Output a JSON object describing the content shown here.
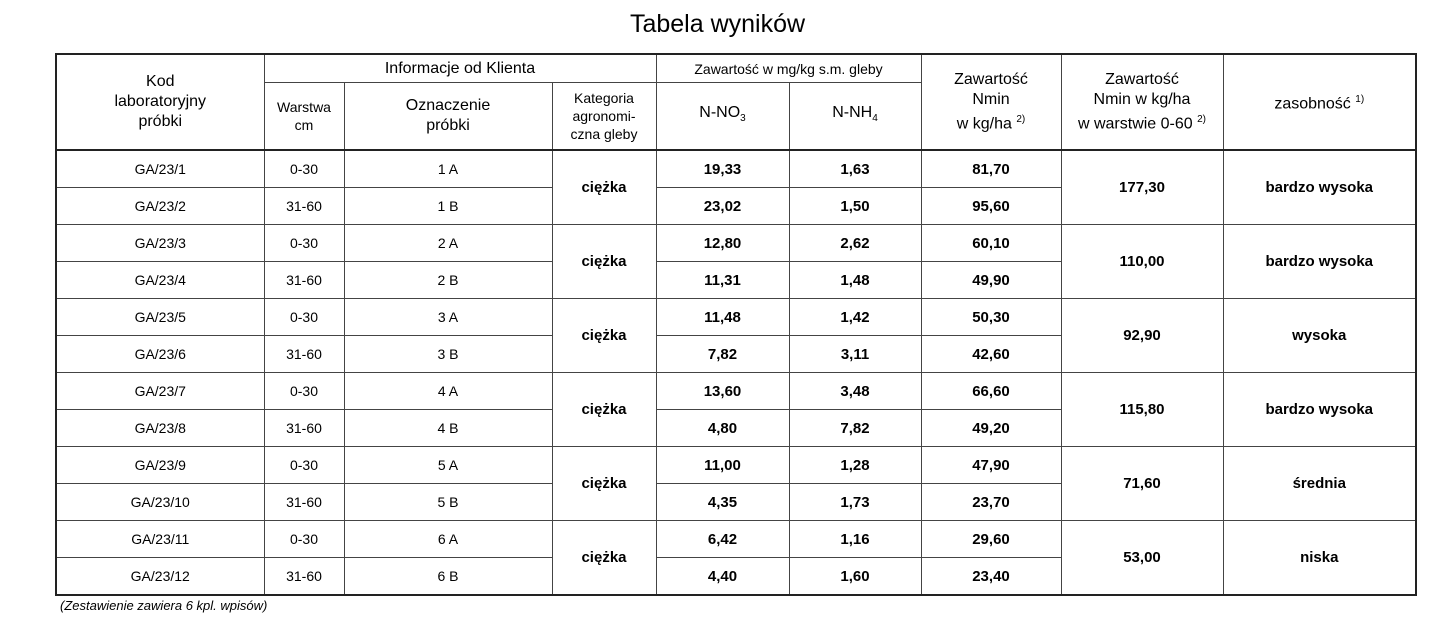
{
  "title": "Tabela wyników",
  "header": {
    "kod": [
      "Kod",
      "laboratoryjny",
      "próbki"
    ],
    "info": "Informacje od Klienta",
    "warstwa": [
      "Warstwa",
      "cm"
    ],
    "oznaczenie": [
      "Oznaczenie",
      "próbki"
    ],
    "kategoria": [
      "Kategoria",
      "agronomi-",
      "czna gleby"
    ],
    "zawartosc_mg": "Zawartość w mg/kg s.m. gleby",
    "no3": {
      "text": "N-NO",
      "sub": "3"
    },
    "nh4": {
      "text": "N-NH",
      "sub": "4"
    },
    "nmin": {
      "lines": [
        "Zawartość",
        "Nmin",
        "w kg/ha"
      ],
      "sup": "2)"
    },
    "nmin060": {
      "lines": [
        "Zawartość",
        "Nmin w kg/ha",
        "w warstwie 0-60"
      ],
      "sup": "2)"
    },
    "zasobnosc": {
      "text": "zasobność",
      "sup": "1)"
    }
  },
  "groups": [
    {
      "category": "ciężka",
      "total": "177,30",
      "level": "bardzo wysoka",
      "samples": [
        {
          "code": "GA/23/1",
          "depth": "0-30",
          "label": "1 A",
          "no3": "19,33",
          "nh4": "1,63",
          "nmin": "81,70"
        },
        {
          "code": "GA/23/2",
          "depth": "31-60",
          "label": "1 B",
          "no3": "23,02",
          "nh4": "1,50",
          "nmin": "95,60"
        }
      ]
    },
    {
      "category": "ciężka",
      "total": "110,00",
      "level": "bardzo wysoka",
      "samples": [
        {
          "code": "GA/23/3",
          "depth": "0-30",
          "label": "2 A",
          "no3": "12,80",
          "nh4": "2,62",
          "nmin": "60,10"
        },
        {
          "code": "GA/23/4",
          "depth": "31-60",
          "label": "2 B",
          "no3": "11,31",
          "nh4": "1,48",
          "nmin": "49,90"
        }
      ]
    },
    {
      "category": "ciężka",
      "total": "92,90",
      "level": "wysoka",
      "samples": [
        {
          "code": "GA/23/5",
          "depth": "0-30",
          "label": "3 A",
          "no3": "11,48",
          "nh4": "1,42",
          "nmin": "50,30"
        },
        {
          "code": "GA/23/6",
          "depth": "31-60",
          "label": "3 B",
          "no3": "7,82",
          "nh4": "3,11",
          "nmin": "42,60"
        }
      ]
    },
    {
      "category": "ciężka",
      "total": "115,80",
      "level": "bardzo wysoka",
      "samples": [
        {
          "code": "GA/23/7",
          "depth": "0-30",
          "label": "4 A",
          "no3": "13,60",
          "nh4": "3,48",
          "nmin": "66,60"
        },
        {
          "code": "GA/23/8",
          "depth": "31-60",
          "label": "4 B",
          "no3": "4,80",
          "nh4": "7,82",
          "nmin": "49,20"
        }
      ]
    },
    {
      "category": "ciężka",
      "total": "71,60",
      "level": "średnia",
      "samples": [
        {
          "code": "GA/23/9",
          "depth": "0-30",
          "label": "5 A",
          "no3": "11,00",
          "nh4": "1,28",
          "nmin": "47,90"
        },
        {
          "code": "GA/23/10",
          "depth": "31-60",
          "label": "5 B",
          "no3": "4,35",
          "nh4": "1,73",
          "nmin": "23,70"
        }
      ]
    },
    {
      "category": "ciężka",
      "total": "53,00",
      "level": "niska",
      "samples": [
        {
          "code": "GA/23/11",
          "depth": "0-30",
          "label": "6 A",
          "no3": "6,42",
          "nh4": "1,16",
          "nmin": "29,60"
        },
        {
          "code": "GA/23/12",
          "depth": "31-60",
          "label": "6 B",
          "no3": "4,40",
          "nh4": "1,60",
          "nmin": "23,40"
        }
      ]
    }
  ],
  "footnote": "(Zestawienie zawiera 6 kpl. wpisów)"
}
